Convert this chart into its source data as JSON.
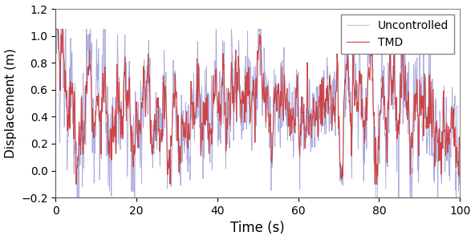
{
  "title": "",
  "xlabel": "Time (s)",
  "ylabel": "Displacement (m)",
  "xlim": [
    0,
    100
  ],
  "ylim": [
    -0.2,
    1.2
  ],
  "yticks": [
    -0.2,
    0.0,
    0.2,
    0.4,
    0.6,
    0.8,
    1.0,
    1.2
  ],
  "xticks": [
    0,
    20,
    40,
    60,
    80,
    100
  ],
  "uncontrolled_color": "#AAAADD",
  "tmd_color": "#CC4444",
  "legend_labels": [
    "Uncontrolled",
    "TMD"
  ],
  "dt": 0.05,
  "duration": 100,
  "figsize": [
    5.92,
    2.99
  ],
  "dpi": 100,
  "xlabel_fontsize": 12,
  "ylabel_fontsize": 11,
  "tick_fontsize": 10,
  "legend_fontsize": 10,
  "linewidth_uncontrolled": 0.6,
  "linewidth_tmd": 0.8
}
